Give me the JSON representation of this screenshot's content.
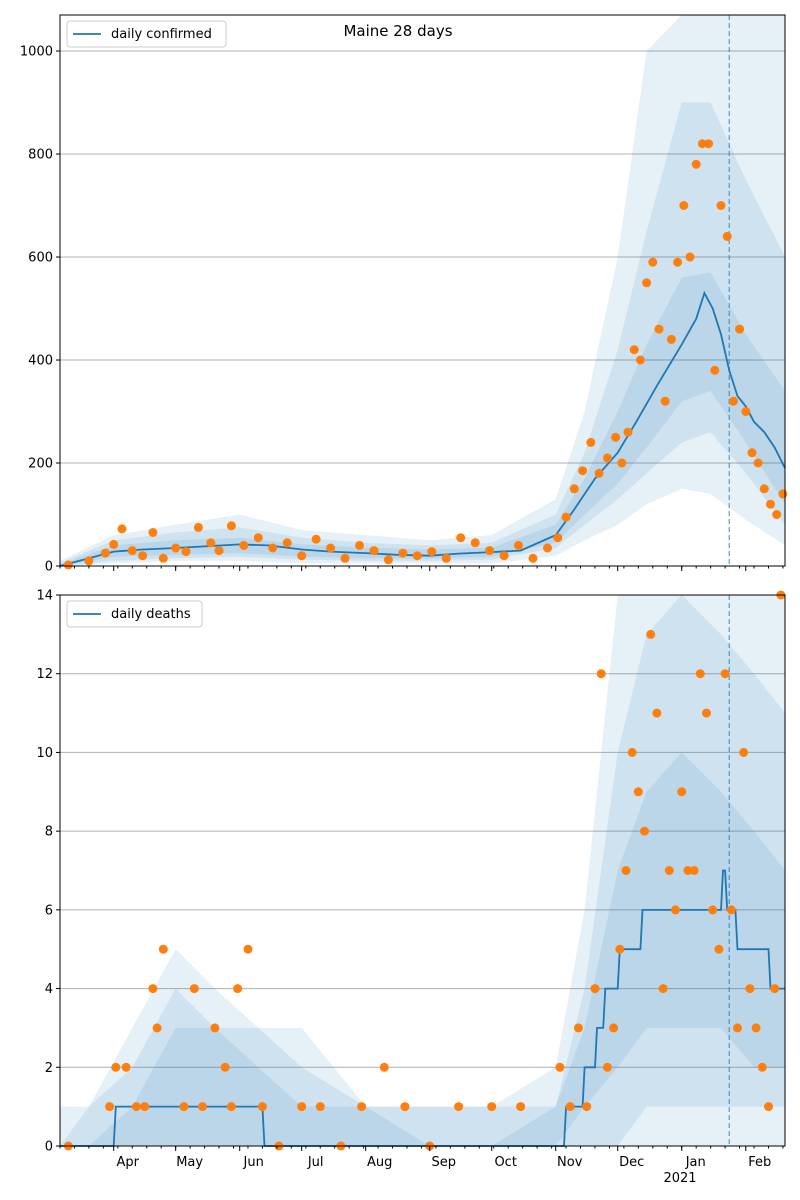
{
  "colors": {
    "line": "#1f77b4",
    "points": "#ff7f0e",
    "band": "#1f77b4",
    "grid": "#b0b0b0",
    "vline": "#1f77b4"
  },
  "chart_data": [
    {
      "type": "line",
      "title": "Maine 28 days",
      "legend": {
        "label": "daily confirmed",
        "placement": "top-left"
      },
      "ylim": [
        0,
        1070
      ],
      "yticks": [
        0,
        200,
        400,
        600,
        800,
        1000
      ],
      "ytick_labels": [
        "0",
        "200",
        "400",
        "600",
        "800",
        "1000"
      ],
      "grid": "horizontal",
      "xlim": [
        "2020-03-06",
        "2021-02-20"
      ],
      "xticks": [
        {
          "date": "2020-04-01",
          "label": "Apr"
        },
        {
          "date": "2020-05-01",
          "label": "May"
        },
        {
          "date": "2020-06-01",
          "label": "Jun"
        },
        {
          "date": "2020-07-01",
          "label": "Jul"
        },
        {
          "date": "2020-08-01",
          "label": "Aug"
        },
        {
          "date": "2020-09-01",
          "label": "Sep"
        },
        {
          "date": "2020-10-01",
          "label": "Oct"
        },
        {
          "date": "2020-11-01",
          "label": "Nov"
        },
        {
          "date": "2020-12-01",
          "label": "Dec"
        },
        {
          "date": "2021-01-01",
          "label": "Jan"
        },
        {
          "date": "2021-02-01",
          "label": "Feb"
        }
      ],
      "year_label": "2021",
      "forecast_start": "2021-01-24",
      "series": [
        {
          "name": "daily confirmed",
          "kind": "line",
          "x": [
            "2020-03-06",
            "2020-03-20",
            "2020-04-01",
            "2020-04-15",
            "2020-05-01",
            "2020-05-15",
            "2020-06-01",
            "2020-06-15",
            "2020-07-01",
            "2020-07-15",
            "2020-08-01",
            "2020-08-15",
            "2020-09-01",
            "2020-09-15",
            "2020-10-01",
            "2020-10-15",
            "2020-11-01",
            "2020-11-10",
            "2020-11-20",
            "2020-12-01",
            "2020-12-10",
            "2020-12-20",
            "2021-01-01",
            "2021-01-08",
            "2021-01-12",
            "2021-01-16",
            "2021-01-20",
            "2021-01-24",
            "2021-01-28",
            "2021-02-01",
            "2021-02-05",
            "2021-02-10",
            "2021-02-15",
            "2021-02-20"
          ],
          "y": [
            0,
            15,
            28,
            32,
            35,
            38,
            42,
            40,
            32,
            28,
            25,
            22,
            20,
            24,
            27,
            30,
            60,
            110,
            170,
            220,
            280,
            350,
            430,
            480,
            530,
            500,
            450,
            380,
            330,
            310,
            280,
            260,
            230,
            190
          ]
        },
        {
          "name": "",
          "kind": "points",
          "x": [
            "2020-03-10",
            "2020-03-20",
            "2020-03-28",
            "2020-04-01",
            "2020-04-05",
            "2020-04-10",
            "2020-04-15",
            "2020-04-20",
            "2020-04-25",
            "2020-05-01",
            "2020-05-06",
            "2020-05-12",
            "2020-05-18",
            "2020-05-22",
            "2020-05-28",
            "2020-06-03",
            "2020-06-10",
            "2020-06-17",
            "2020-06-24",
            "2020-07-01",
            "2020-07-08",
            "2020-07-15",
            "2020-07-22",
            "2020-07-29",
            "2020-08-05",
            "2020-08-12",
            "2020-08-19",
            "2020-08-26",
            "2020-09-02",
            "2020-09-09",
            "2020-09-16",
            "2020-09-23",
            "2020-09-30",
            "2020-10-07",
            "2020-10-14",
            "2020-10-21",
            "2020-10-28",
            "2020-11-02",
            "2020-11-06",
            "2020-11-10",
            "2020-11-14",
            "2020-11-18",
            "2020-11-22",
            "2020-11-26",
            "2020-11-30",
            "2020-12-03",
            "2020-12-06",
            "2020-12-09",
            "2020-12-12",
            "2020-12-15",
            "2020-12-18",
            "2020-12-21",
            "2020-12-24",
            "2020-12-27",
            "2020-12-30",
            "2021-01-02",
            "2021-01-05",
            "2021-01-08",
            "2021-01-11",
            "2021-01-14",
            "2021-01-17",
            "2021-01-20",
            "2021-01-23",
            "2021-01-26",
            "2021-01-29",
            "2021-02-01",
            "2021-02-04",
            "2021-02-07",
            "2021-02-10",
            "2021-02-13",
            "2021-02-16",
            "2021-02-19"
          ],
          "y": [
            2,
            10,
            25,
            42,
            72,
            30,
            20,
            65,
            15,
            35,
            28,
            75,
            45,
            30,
            78,
            40,
            55,
            35,
            45,
            20,
            52,
            35,
            15,
            40,
            30,
            12,
            25,
            20,
            28,
            15,
            55,
            45,
            30,
            20,
            40,
            15,
            35,
            55,
            95,
            150,
            185,
            240,
            180,
            210,
            250,
            200,
            260,
            420,
            400,
            550,
            590,
            460,
            320,
            440,
            590,
            700,
            600,
            780,
            820,
            820,
            380,
            700,
            640,
            320,
            460,
            300,
            220,
            200,
            150,
            120,
            100,
            140
          ]
        }
      ],
      "bands": [
        {
          "x": [
            "2020-03-06",
            "2020-04-01",
            "2020-05-01",
            "2020-06-01",
            "2020-07-01",
            "2020-08-01",
            "2020-09-01",
            "2020-10-01",
            "2020-11-01",
            "2020-11-15",
            "2020-12-01",
            "2020-12-15",
            "2021-01-01",
            "2021-01-15",
            "2021-02-01",
            "2021-02-20"
          ],
          "lower": [
            0,
            5,
            10,
            10,
            5,
            5,
            5,
            5,
            20,
            50,
            80,
            120,
            150,
            140,
            90,
            40
          ],
          "upper": [
            10,
            60,
            80,
            100,
            70,
            60,
            50,
            60,
            130,
            300,
            600,
            1000,
            1400,
            1500,
            1300,
            1200
          ]
        },
        {
          "x": [
            "2020-03-06",
            "2020-04-01",
            "2020-05-01",
            "2020-06-01",
            "2020-07-01",
            "2020-08-01",
            "2020-09-01",
            "2020-10-01",
            "2020-11-01",
            "2020-11-15",
            "2020-12-01",
            "2020-12-15",
            "2021-01-01",
            "2021-01-15",
            "2021-02-01",
            "2021-02-20"
          ],
          "lower": [
            0,
            10,
            15,
            18,
            12,
            10,
            10,
            12,
            35,
            80,
            130,
            180,
            240,
            260,
            180,
            80
          ],
          "upper": [
            6,
            50,
            65,
            75,
            55,
            45,
            40,
            45,
            100,
            220,
            420,
            650,
            900,
            900,
            750,
            600
          ]
        },
        {
          "x": [
            "2020-03-06",
            "2020-04-01",
            "2020-05-01",
            "2020-06-01",
            "2020-07-01",
            "2020-08-01",
            "2020-09-01",
            "2020-10-01",
            "2020-11-01",
            "2020-11-15",
            "2020-12-01",
            "2020-12-15",
            "2021-01-01",
            "2021-01-15",
            "2021-02-01",
            "2021-02-20"
          ],
          "lower": [
            0,
            18,
            22,
            25,
            18,
            15,
            14,
            18,
            45,
            100,
            160,
            230,
            320,
            340,
            240,
            120
          ],
          "upper": [
            3,
            40,
            50,
            55,
            42,
            36,
            32,
            36,
            80,
            170,
            300,
            430,
            560,
            570,
            450,
            340
          ]
        }
      ]
    },
    {
      "type": "line",
      "title": "",
      "legend": {
        "label": "daily deaths",
        "placement": "top-left"
      },
      "ylim": [
        0,
        14
      ],
      "yticks": [
        0,
        2,
        4,
        6,
        8,
        10,
        12,
        14
      ],
      "ytick_labels": [
        "0",
        "2",
        "4",
        "6",
        "8",
        "10",
        "12",
        "14"
      ],
      "grid": "horizontal",
      "xlim": [
        "2020-03-06",
        "2021-02-20"
      ],
      "xticks": [
        {
          "date": "2020-04-01",
          "label": "Apr"
        },
        {
          "date": "2020-05-01",
          "label": "May"
        },
        {
          "date": "2020-06-01",
          "label": "Jun"
        },
        {
          "date": "2020-07-01",
          "label": "Jul"
        },
        {
          "date": "2020-08-01",
          "label": "Aug"
        },
        {
          "date": "2020-09-01",
          "label": "Sep"
        },
        {
          "date": "2020-10-01",
          "label": "Oct"
        },
        {
          "date": "2020-11-01",
          "label": "Nov"
        },
        {
          "date": "2020-12-01",
          "label": "Dec"
        },
        {
          "date": "2021-01-01",
          "label": "Jan"
        },
        {
          "date": "2021-02-01",
          "label": "Feb"
        }
      ],
      "year_label": "2021",
      "forecast_start": "2021-01-24",
      "series": [
        {
          "name": "daily deaths",
          "kind": "line",
          "x": [
            "2020-03-06",
            "2020-04-01",
            "2020-04-02",
            "2020-06-12",
            "2020-06-13",
            "2020-11-05",
            "2020-11-06",
            "2020-11-14",
            "2020-11-15",
            "2020-11-20",
            "2020-11-21",
            "2020-11-24",
            "2020-11-25",
            "2020-12-01",
            "2020-12-02",
            "2020-12-12",
            "2020-12-13",
            "2021-01-20",
            "2021-01-21",
            "2021-01-22",
            "2021-01-23",
            "2021-01-27",
            "2021-01-28",
            "2021-02-12",
            "2021-02-13",
            "2021-02-20"
          ],
          "y": [
            0,
            0,
            1,
            1,
            0,
            0,
            1,
            1,
            2,
            2,
            3,
            3,
            4,
            4,
            5,
            5,
            6,
            6,
            7,
            7,
            6,
            6,
            5,
            5,
            4,
            4
          ]
        },
        {
          "name": "",
          "kind": "points",
          "x": [
            "2020-03-10",
            "2020-03-30",
            "2020-04-02",
            "2020-04-07",
            "2020-04-12",
            "2020-04-16",
            "2020-04-20",
            "2020-04-22",
            "2020-04-25",
            "2020-05-05",
            "2020-05-10",
            "2020-05-14",
            "2020-05-20",
            "2020-05-25",
            "2020-05-28",
            "2020-05-31",
            "2020-06-05",
            "2020-06-12",
            "2020-06-20",
            "2020-07-01",
            "2020-07-10",
            "2020-07-20",
            "2020-07-30",
            "2020-08-10",
            "2020-08-20",
            "2020-09-01",
            "2020-09-15",
            "2020-10-01",
            "2020-10-15",
            "2020-11-03",
            "2020-11-08",
            "2020-11-12",
            "2020-11-16",
            "2020-11-20",
            "2020-11-23",
            "2020-11-26",
            "2020-11-29",
            "2020-12-02",
            "2020-12-05",
            "2020-12-08",
            "2020-12-11",
            "2020-12-14",
            "2020-12-17",
            "2020-12-20",
            "2020-12-23",
            "2020-12-26",
            "2020-12-29",
            "2021-01-01",
            "2021-01-04",
            "2021-01-07",
            "2021-01-10",
            "2021-01-13",
            "2021-01-16",
            "2021-01-19",
            "2021-01-22",
            "2021-01-25",
            "2021-01-28",
            "2021-01-31",
            "2021-02-03",
            "2021-02-06",
            "2021-02-09",
            "2021-02-12",
            "2021-02-15",
            "2021-02-18"
          ],
          "y": [
            0,
            1,
            2,
            2,
            1,
            1,
            4,
            3,
            5,
            1,
            4,
            1,
            3,
            2,
            1,
            4,
            5,
            1,
            0,
            1,
            1,
            0,
            1,
            2,
            1,
            0,
            1,
            1,
            1,
            2,
            1,
            3,
            1,
            4,
            12,
            2,
            3,
            5,
            7,
            10,
            9,
            8,
            13,
            11,
            4,
            7,
            6,
            9,
            7,
            7,
            12,
            11,
            6,
            5,
            12,
            6,
            3,
            10,
            4,
            3,
            2,
            1,
            4,
            14
          ]
        }
      ],
      "bands": [
        {
          "x": [
            "2020-03-06",
            "2020-03-20",
            "2020-04-10",
            "2020-05-01",
            "2020-05-20",
            "2020-06-10",
            "2020-07-01",
            "2020-08-01",
            "2020-09-01",
            "2020-10-01",
            "2020-11-01",
            "2020-11-15",
            "2020-12-01",
            "2020-12-15",
            "2021-01-01",
            "2021-01-20",
            "2021-02-05",
            "2021-02-20"
          ],
          "lower": [
            0,
            0,
            0,
            0,
            0,
            0,
            0,
            0,
            0,
            0,
            0,
            0,
            0,
            0,
            0,
            0,
            0,
            0
          ],
          "upper": [
            1,
            1,
            3,
            5,
            4,
            3,
            3,
            1,
            1,
            1,
            2,
            6,
            14,
            14,
            14,
            14,
            14,
            14
          ]
        },
        {
          "x": [
            "2020-03-06",
            "2020-03-20",
            "2020-04-10",
            "2020-05-01",
            "2020-05-20",
            "2020-06-10",
            "2020-07-01",
            "2020-08-01",
            "2020-09-01",
            "2020-10-01",
            "2020-11-01",
            "2020-11-15",
            "2020-12-01",
            "2020-12-15",
            "2021-01-01",
            "2021-01-20",
            "2021-02-05",
            "2021-02-20"
          ],
          "lower": [
            0,
            0,
            0,
            0,
            0,
            0,
            0,
            0,
            0,
            0,
            0,
            0,
            0,
            1,
            1,
            1,
            1,
            1
          ],
          "upper": [
            0,
            1,
            2,
            4,
            3,
            3,
            2,
            1,
            1,
            1,
            1,
            4,
            10,
            13,
            14,
            13,
            12,
            11
          ]
        },
        {
          "x": [
            "2020-03-06",
            "2020-03-20",
            "2020-04-10",
            "2020-05-01",
            "2020-05-20",
            "2020-06-10",
            "2020-07-01",
            "2020-08-01",
            "2020-09-01",
            "2020-10-01",
            "2020-11-01",
            "2020-11-15",
            "2020-12-01",
            "2020-12-15",
            "2021-01-01",
            "2021-01-20",
            "2021-02-05",
            "2021-02-20"
          ],
          "lower": [
            0,
            0,
            0,
            0,
            0,
            0,
            0,
            0,
            0,
            0,
            0,
            1,
            2,
            3,
            3,
            3,
            2,
            2
          ],
          "upper": [
            0,
            0,
            1,
            3,
            3,
            2,
            1,
            1,
            0,
            0,
            1,
            3,
            7,
            9,
            10,
            9,
            8,
            7
          ]
        }
      ]
    }
  ]
}
